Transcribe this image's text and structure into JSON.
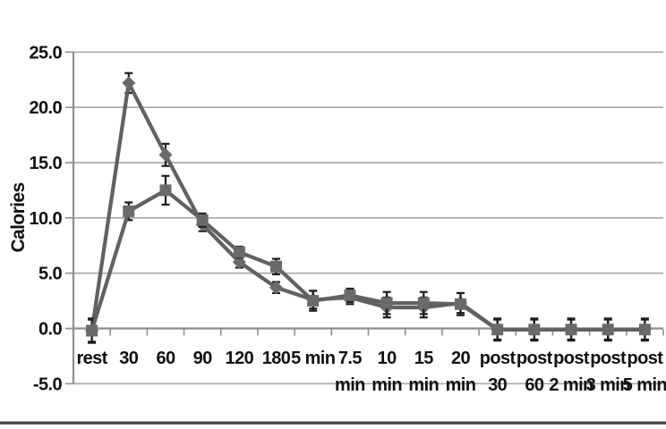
{
  "figure": {
    "ylabel": "Calories",
    "colors": {
      "series_line": "#616161",
      "marker_fill": "#6a6a6a",
      "error_bar": "#1c1c1c",
      "gridline": "#a6a6a6",
      "axis": "#8f8f8f",
      "text": "#111111",
      "bottom_rule": "#474747"
    }
  },
  "chart_data": {
    "type": "line",
    "title": "",
    "xlabel": "",
    "ylabel": "Calories",
    "ylim": [
      -5.0,
      25.0
    ],
    "grid": true,
    "legend": "none",
    "y_ticks": {
      "values": [
        25,
        20,
        15,
        10,
        5,
        0,
        -5
      ],
      "labels": [
        "25.0",
        "20.0",
        "15.0",
        "10.0",
        "5.0",
        "0.0",
        "-5.0"
      ]
    },
    "categories": [
      {
        "line1": "rest",
        "line2": ""
      },
      {
        "line1": "30",
        "line2": ""
      },
      {
        "line1": "60",
        "line2": ""
      },
      {
        "line1": "90",
        "line2": ""
      },
      {
        "line1": "120",
        "line2": ""
      },
      {
        "line1": "180",
        "line2": ""
      },
      {
        "line1": "5 min",
        "line2": ""
      },
      {
        "line1": "7.5",
        "line2": "min"
      },
      {
        "line1": "10",
        "line2": "min"
      },
      {
        "line1": "15",
        "line2": "min"
      },
      {
        "line1": "20",
        "line2": "min"
      },
      {
        "line1": "post",
        "line2": "30"
      },
      {
        "line1": "post",
        "line2": "60"
      },
      {
        "line1": "post",
        "line2": "2 min"
      },
      {
        "line1": "post",
        "line2": "3 min"
      },
      {
        "line1": "post",
        "line2": "5 min"
      }
    ],
    "series": [
      {
        "name": "diamond",
        "marker": "diamond",
        "values": [
          -0.2,
          22.2,
          15.7,
          9.4,
          6.0,
          3.7,
          2.6,
          2.8,
          1.9,
          1.9,
          2.3,
          -0.1,
          -0.1,
          -0.1,
          -0.1,
          -0.1
        ],
        "errors": [
          1.0,
          0.9,
          1.0,
          0.6,
          0.5,
          0.5,
          0.8,
          0.6,
          0.9,
          0.9,
          0.9,
          0.9,
          0.9,
          0.9,
          0.9,
          0.9
        ]
      },
      {
        "name": "square",
        "marker": "square",
        "values": [
          -0.2,
          10.6,
          12.5,
          9.8,
          6.9,
          5.6,
          2.5,
          3.0,
          2.3,
          2.3,
          2.2,
          -0.1,
          -0.1,
          -0.1,
          -0.1,
          -0.1
        ],
        "errors": [
          1.1,
          0.8,
          1.3,
          0.6,
          0.5,
          0.7,
          0.9,
          0.6,
          1.0,
          1.0,
          1.0,
          1.0,
          1.0,
          1.0,
          1.0,
          1.0
        ]
      }
    ]
  }
}
